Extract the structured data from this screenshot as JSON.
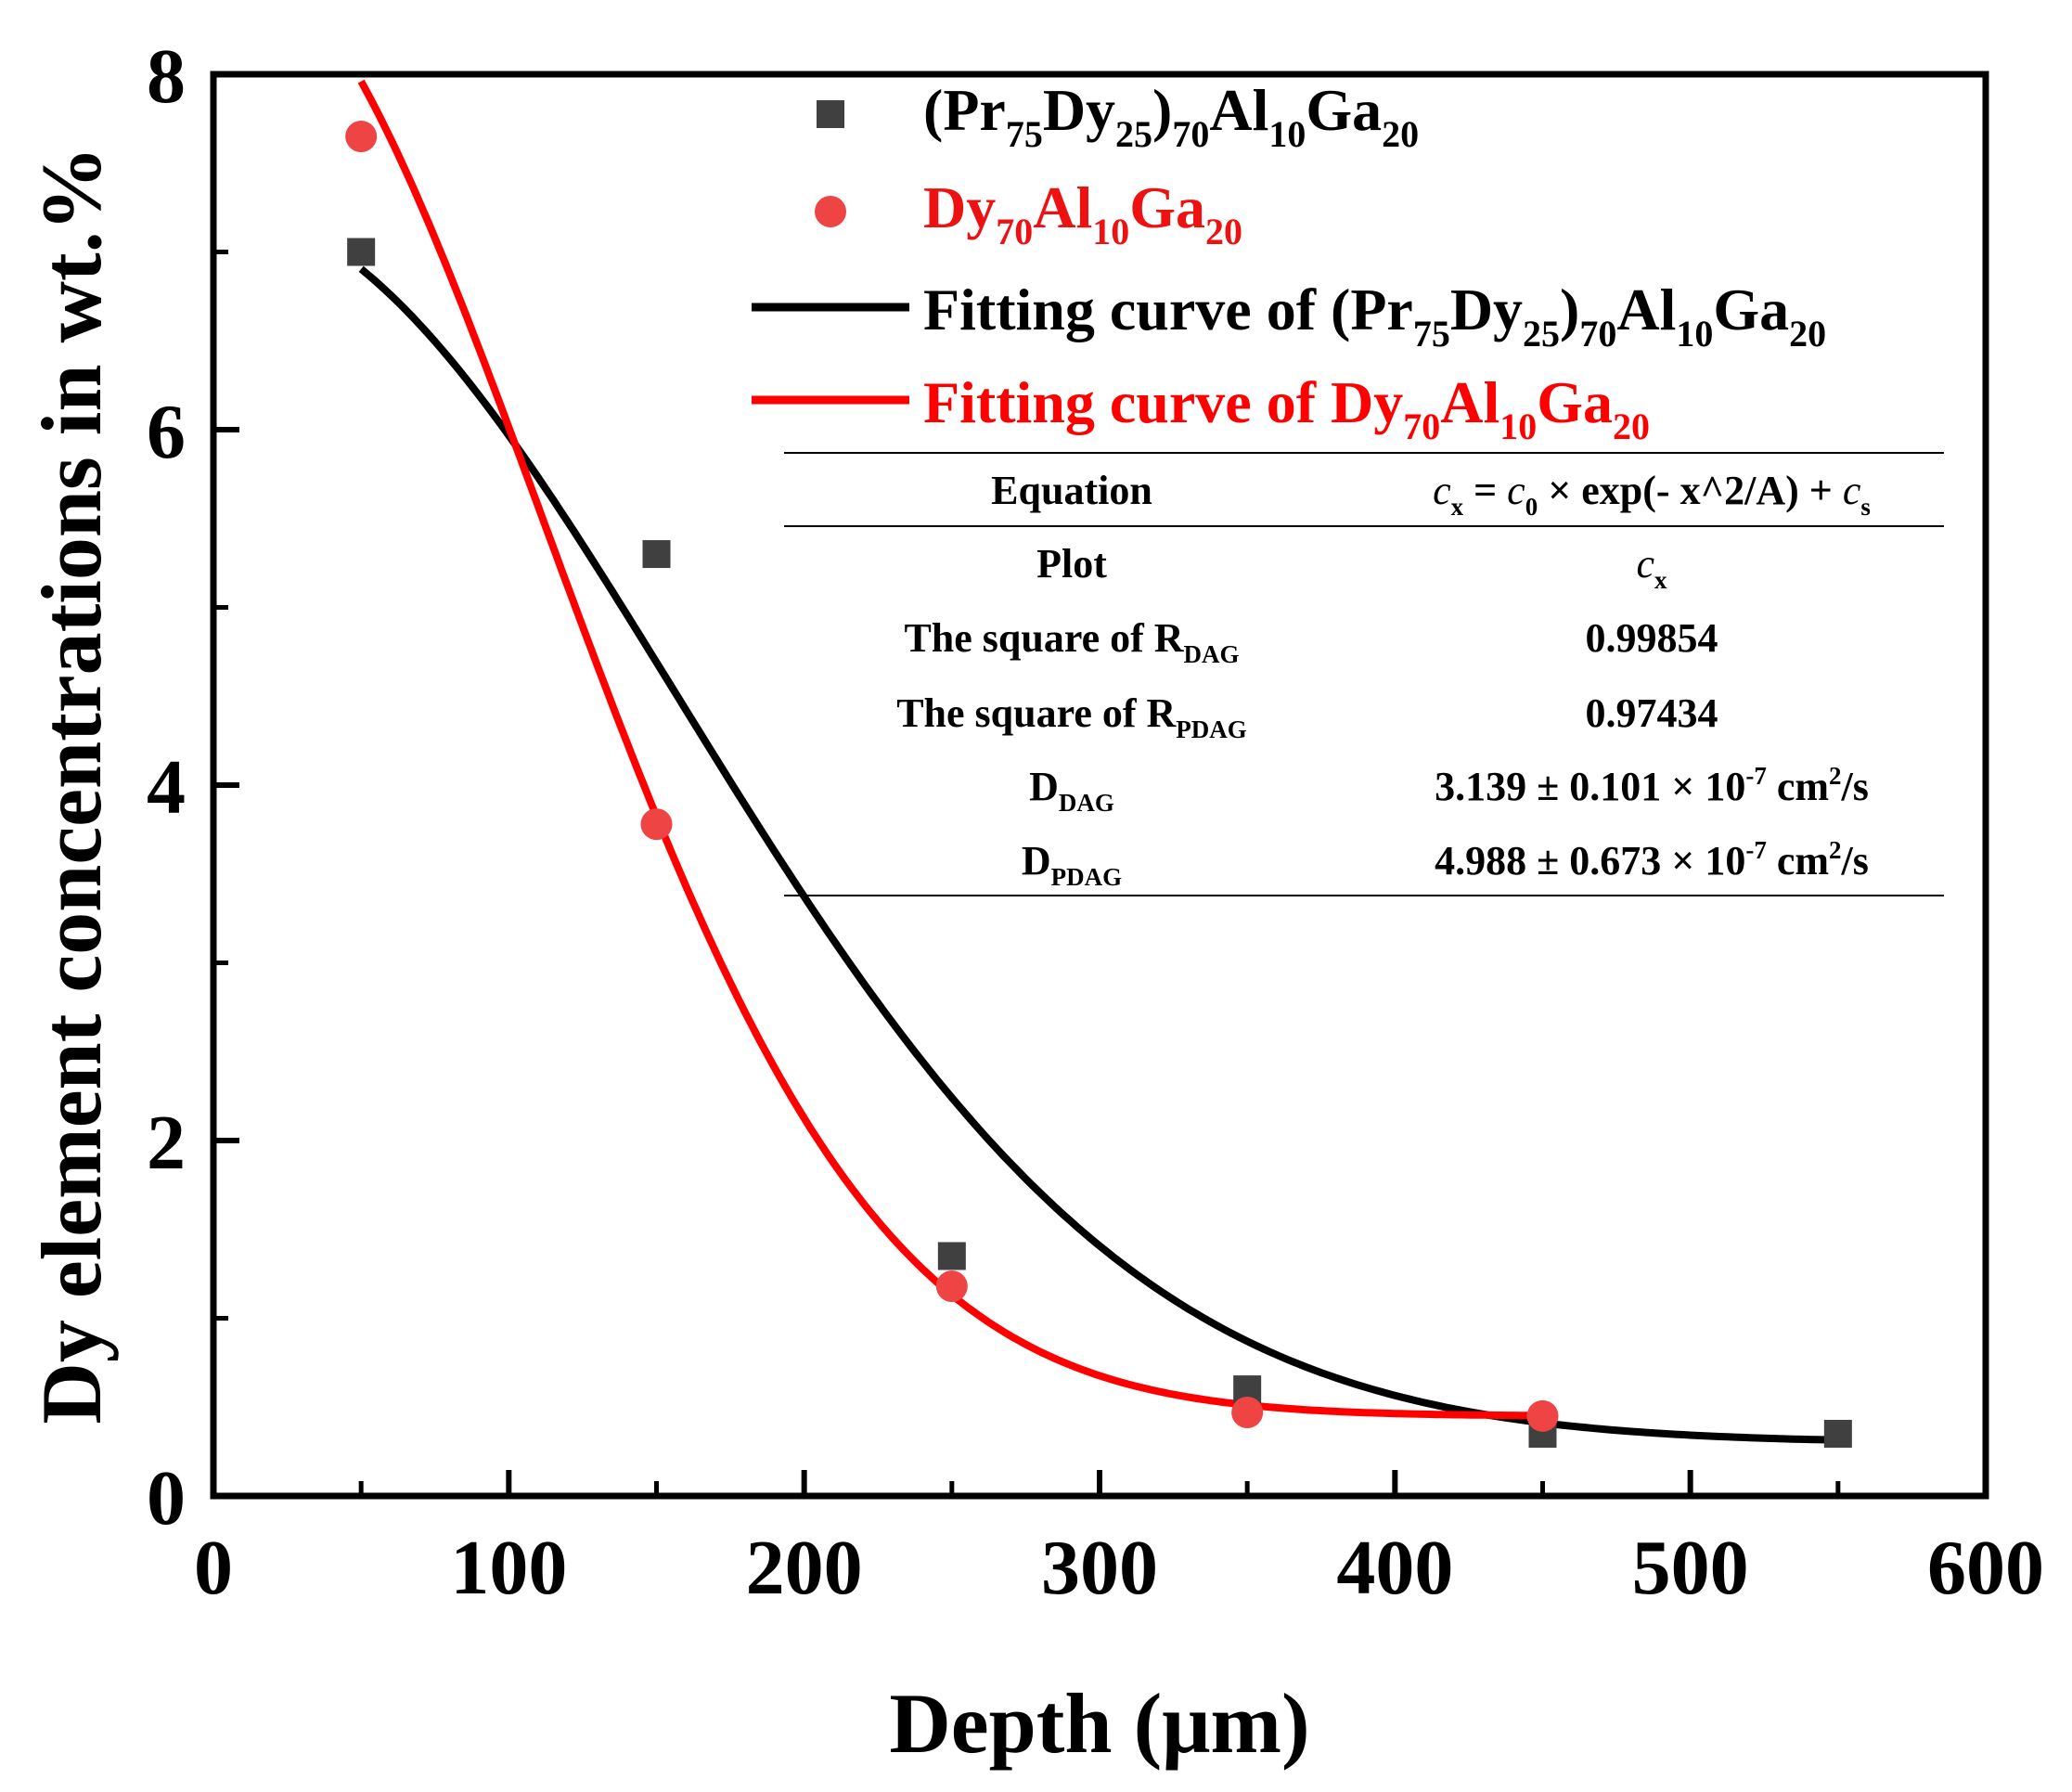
{
  "chart_data": {
    "type": "scatter",
    "xlabel": "Depth (μm)",
    "ylabel": "Dy element concentrations in wt.%",
    "xlim": [
      0,
      600
    ],
    "ylim": [
      0,
      8
    ],
    "x_ticks": [
      "0",
      "100",
      "200",
      "300",
      "400",
      "500",
      "600"
    ],
    "y_ticks": [
      "0",
      "2",
      "4",
      "6",
      "8"
    ],
    "grid": false,
    "legend_position": "top-right",
    "series": [
      {
        "name": "(Pr75Dy25)70Al10Ga20",
        "name_parts": [
          {
            "t": "(Pr",
            "sub": false
          },
          {
            "t": "75",
            "sub": true
          },
          {
            "t": "Dy",
            "sub": false
          },
          {
            "t": "25",
            "sub": true
          },
          {
            "t": ")",
            "sub": false
          },
          {
            "t": "70",
            "sub": true
          },
          {
            "t": "Al",
            "sub": false
          },
          {
            "t": "10",
            "sub": true
          },
          {
            "t": "Ga",
            "sub": false
          },
          {
            "t": "20",
            "sub": true
          }
        ],
        "marker": "square",
        "color": "#404040",
        "label_color": "#000000",
        "x": [
          50,
          150,
          250,
          350,
          450,
          550
        ],
        "y": [
          7.0,
          5.3,
          1.35,
          0.6,
          0.35,
          0.35
        ]
      },
      {
        "name": "Dy70Al10Ga20",
        "name_parts": [
          {
            "t": "Dy",
            "sub": false
          },
          {
            "t": "70",
            "sub": true
          },
          {
            "t": "Al",
            "sub": false
          },
          {
            "t": "10",
            "sub": true
          },
          {
            "t": "Ga",
            "sub": false
          },
          {
            "t": "20",
            "sub": true
          }
        ],
        "marker": "circle",
        "color": "#ee4444",
        "label_color": "#ee1111",
        "x": [
          50,
          150,
          250,
          350,
          450
        ],
        "y": [
          7.65,
          3.78,
          1.18,
          0.47,
          0.45
        ]
      }
    ],
    "fits": [
      {
        "name": "Fitting curve of (Pr75Dy25)70Al10Ga20",
        "name_parts": [
          {
            "t": "Fitting curve of (Pr",
            "sub": false
          },
          {
            "t": "75",
            "sub": true
          },
          {
            "t": "Dy",
            "sub": false
          },
          {
            "t": "25",
            "sub": true
          },
          {
            "t": ")",
            "sub": false
          },
          {
            "t": "70",
            "sub": true
          },
          {
            "t": "Al",
            "sub": false
          },
          {
            "t": "10",
            "sub": true
          },
          {
            "t": "Ga",
            "sub": false
          },
          {
            "t": "20",
            "sub": true
          }
        ],
        "color": "#000000",
        "c0": 6.95,
        "A": 49000,
        "cs": 0.3,
        "x_range": [
          50,
          550
        ]
      },
      {
        "name": "Fitting curve of Dy70Al10Ga20",
        "name_parts": [
          {
            "t": "Fitting curve of Dy",
            "sub": false
          },
          {
            "t": "70",
            "sub": true
          },
          {
            "t": "Al",
            "sub": false
          },
          {
            "t": "10",
            "sub": true
          },
          {
            "t": "Ga",
            "sub": false
          },
          {
            "t": "20",
            "sub": true
          }
        ],
        "color": "#ff0000",
        "c0": 8.3,
        "A": 25000,
        "cs": 0.45,
        "x_range": [
          50,
          450
        ]
      }
    ],
    "table": {
      "rows": [
        {
          "label": [
            {
              "t": "Equation",
              "sub": false
            }
          ],
          "value": [
            {
              "t": "c",
              "sub": false,
              "italic": true
            },
            {
              "t": "x",
              "sub": true
            },
            {
              "t": " = ",
              "sub": false
            },
            {
              "t": "c",
              "sub": false,
              "italic": true
            },
            {
              "t": "0",
              "sub": true
            },
            {
              "t": " × exp(- x^2/A) + ",
              "sub": false
            },
            {
              "t": "c",
              "sub": false,
              "italic": true
            },
            {
              "t": "s",
              "sub": true
            }
          ]
        },
        {
          "label": [
            {
              "t": "Plot",
              "sub": false
            }
          ],
          "value": [
            {
              "t": "c",
              "sub": false,
              "italic": true
            },
            {
              "t": "x",
              "sub": true
            }
          ]
        },
        {
          "label": [
            {
              "t": "The square of R",
              "sub": false
            },
            {
              "t": "DAG",
              "sub": true
            }
          ],
          "value": [
            {
              "t": "0.99854",
              "sub": false
            }
          ]
        },
        {
          "label": [
            {
              "t": "The square of R",
              "sub": false
            },
            {
              "t": "PDAG",
              "sub": true
            }
          ],
          "value": [
            {
              "t": "0.97434",
              "sub": false
            }
          ]
        },
        {
          "label": [
            {
              "t": "D",
              "sub": false
            },
            {
              "t": "DAG",
              "sub": true
            }
          ],
          "value": [
            {
              "t": "3.139 ± 0.101 × 10",
              "sub": false
            },
            {
              "t": "-7",
              "sup": true
            },
            {
              "t": " cm",
              "sub": false
            },
            {
              "t": "2",
              "sup": true
            },
            {
              "t": "/s",
              "sub": false
            }
          ]
        },
        {
          "label": [
            {
              "t": "D",
              "sub": false
            },
            {
              "t": "PDAG",
              "sub": true
            }
          ],
          "value": [
            {
              "t": "4.988 ± 0.673 × 10",
              "sub": false
            },
            {
              "t": "-7",
              "sup": true
            },
            {
              "t": " cm",
              "sub": false
            },
            {
              "t": "2",
              "sup": true
            },
            {
              "t": "/s",
              "sub": false
            }
          ]
        }
      ]
    }
  }
}
